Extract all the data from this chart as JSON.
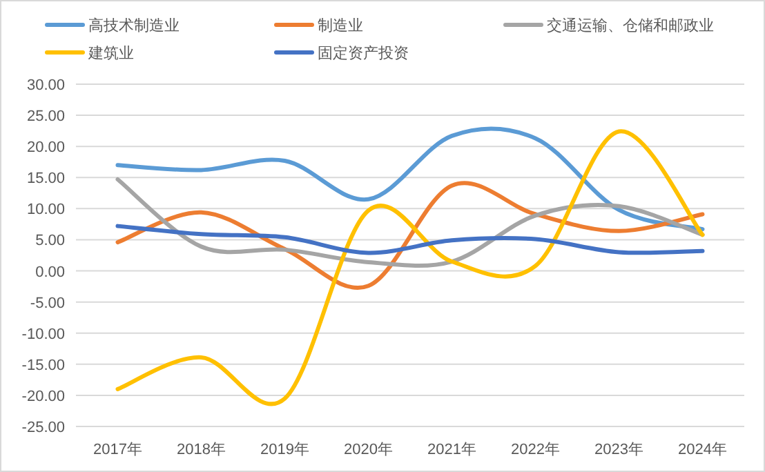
{
  "chart_data": {
    "type": "line",
    "categories": [
      "2017年",
      "2018年",
      "2019年",
      "2020年",
      "2021年",
      "2022年",
      "2023年",
      "2024年"
    ],
    "series": [
      {
        "name": "高技术制造业",
        "color": "#5b9bd5",
        "values": [
          17.0,
          16.2,
          17.7,
          11.5,
          21.7,
          21.3,
          9.8,
          6.7
        ]
      },
      {
        "name": "制造业",
        "color": "#ed7d31",
        "values": [
          4.6,
          9.4,
          3.5,
          -2.4,
          13.7,
          9.1,
          6.4,
          9.1
        ]
      },
      {
        "name": "交通运输、仓储和邮政业",
        "color": "#a5a5a5",
        "values": [
          14.7,
          3.9,
          3.4,
          1.4,
          1.5,
          8.9,
          10.4,
          5.8
        ]
      },
      {
        "name": "建筑业",
        "color": "#ffc000",
        "values": [
          -19.0,
          -13.9,
          -20.5,
          9.7,
          1.5,
          0.8,
          22.4,
          5.8
        ]
      },
      {
        "name": "固定资产投资",
        "color": "#4472c4",
        "values": [
          7.2,
          5.9,
          5.4,
          2.9,
          4.9,
          5.1,
          3.0,
          3.2
        ]
      }
    ],
    "ylim": [
      -25,
      30
    ],
    "yticks": [
      {
        "value": 30,
        "label": "30.00"
      },
      {
        "value": 25,
        "label": "25.00"
      },
      {
        "value": 20,
        "label": "20.00"
      },
      {
        "value": 15,
        "label": "15.00"
      },
      {
        "value": 10,
        "label": "10.00"
      },
      {
        "value": 5,
        "label": "5.00"
      },
      {
        "value": 0,
        "label": "0.00"
      },
      {
        "value": -5,
        "label": "-5.00"
      },
      {
        "value": -10,
        "label": "-10.00"
      },
      {
        "value": -15,
        "label": "-15.00"
      },
      {
        "value": -20,
        "label": "-20.00"
      },
      {
        "value": -25,
        "label": "-25.00"
      }
    ],
    "grid": "y",
    "legend": "top",
    "marker": "none",
    "line_style": "solid"
  }
}
